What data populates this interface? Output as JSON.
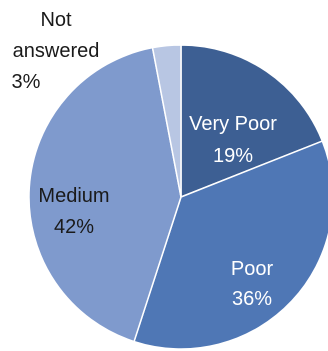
{
  "chart_data": {
    "type": "pie",
    "title": "",
    "slices": [
      {
        "label": "Very Poor",
        "value": 19,
        "percent_label": "19%",
        "color": "#3d5f93",
        "label_color": "#ffffff"
      },
      {
        "label": "Poor",
        "value": 36,
        "percent_label": "36%",
        "color": "#4f77b5",
        "label_color": "#ffffff"
      },
      {
        "label": "Medium",
        "value": 42,
        "percent_label": "42%",
        "color": "#7f9acd",
        "label_color": "#1a1a1a"
      },
      {
        "label": "Not answered",
        "value": 3,
        "percent_label": "3%",
        "color": "#b8c6e3",
        "label_color": "#1a1a1a"
      }
    ],
    "legend": "none",
    "start_angle": "12 o'clock",
    "direction": "clockwise"
  }
}
